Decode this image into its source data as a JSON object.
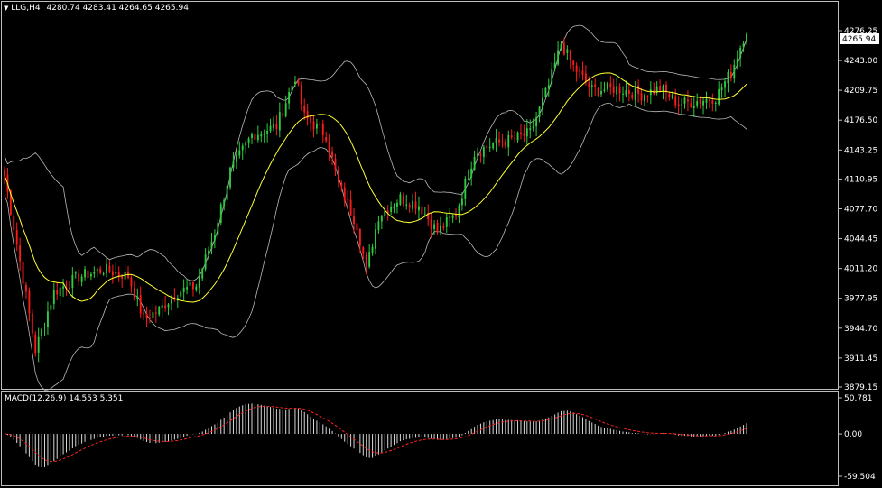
{
  "main_header": {
    "symbol_tf": "LLG,H4",
    "ohlc": "4280.74 4283.41 4264.65 4265.94"
  },
  "macd_header": {
    "label": "MACD(12,26,9) 14.553 5.351"
  },
  "current_price": "4265.94",
  "colors": {
    "background": "#000000",
    "bull": "#2ecc40",
    "bear": "#ff1a1a",
    "bands": "#b9b9b9",
    "ma": "#ffff33",
    "macd_hist": "#d9d9d9",
    "signal": "#ff2222",
    "frame": "#bfbfbf"
  },
  "chart_data": [
    {
      "type": "candlestick",
      "title": "LLG,H4",
      "y_ticks": [
        "4276.25",
        "4243.00",
        "4209.75",
        "4176.50",
        "4143.25",
        "4110.95",
        "4077.70",
        "4044.45",
        "4011.20",
        "3977.95",
        "3944.70",
        "3911.45",
        "3879.15"
      ],
      "ylim": [
        3879.15,
        4286
      ],
      "anchors": [
        {
          "bar": 0,
          "price": 4115
        },
        {
          "bar": 6,
          "price": 4000
        },
        {
          "bar": 10,
          "price": 3920
        },
        {
          "bar": 16,
          "price": 3985
        },
        {
          "bar": 24,
          "price": 4002
        },
        {
          "bar": 32,
          "price": 4010
        },
        {
          "bar": 40,
          "price": 4003
        },
        {
          "bar": 45,
          "price": 3955
        },
        {
          "bar": 50,
          "price": 3965
        },
        {
          "bar": 56,
          "price": 3985
        },
        {
          "bar": 62,
          "price": 3992
        },
        {
          "bar": 68,
          "price": 4052
        },
        {
          "bar": 73,
          "price": 4120
        },
        {
          "bar": 80,
          "price": 4160
        },
        {
          "bar": 88,
          "price": 4170
        },
        {
          "bar": 94,
          "price": 4225
        },
        {
          "bar": 97,
          "price": 4180
        },
        {
          "bar": 104,
          "price": 4160
        },
        {
          "bar": 108,
          "price": 4105
        },
        {
          "bar": 114,
          "price": 4060
        },
        {
          "bar": 117,
          "price": 4010
        },
        {
          "bar": 121,
          "price": 4070
        },
        {
          "bar": 128,
          "price": 4090
        },
        {
          "bar": 134,
          "price": 4082
        },
        {
          "bar": 140,
          "price": 4052
        },
        {
          "bar": 146,
          "price": 4072
        },
        {
          "bar": 152,
          "price": 4140
        },
        {
          "bar": 158,
          "price": 4150
        },
        {
          "bar": 164,
          "price": 4155
        },
        {
          "bar": 170,
          "price": 4162
        },
        {
          "bar": 176,
          "price": 4215
        },
        {
          "bar": 180,
          "price": 4262
        },
        {
          "bar": 184,
          "price": 4236
        },
        {
          "bar": 190,
          "price": 4210
        },
        {
          "bar": 198,
          "price": 4212
        },
        {
          "bar": 206,
          "price": 4205
        },
        {
          "bar": 212,
          "price": 4212
        },
        {
          "bar": 218,
          "price": 4195
        },
        {
          "bar": 224,
          "price": 4198
        },
        {
          "bar": 230,
          "price": 4202
        },
        {
          "bar": 235,
          "price": 4230
        },
        {
          "bar": 240,
          "price": 4278
        }
      ],
      "bars": 241
    },
    {
      "type": "bar",
      "title": "MACD(12,26,9)",
      "y_ticks": [
        "50.781",
        "0.00",
        "-59.504"
      ],
      "ylim": [
        -59.504,
        50.781
      ]
    }
  ]
}
